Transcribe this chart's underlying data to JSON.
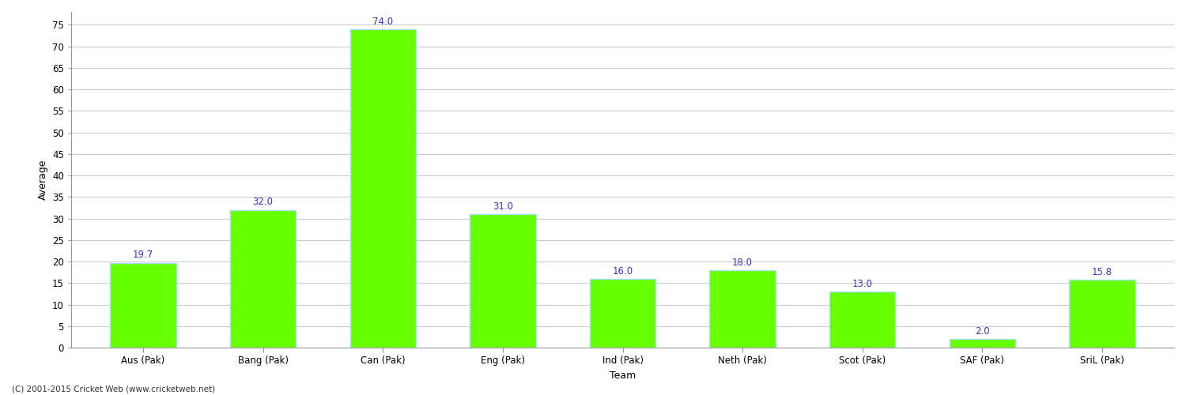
{
  "categories": [
    "Aus (Pak)",
    "Bang (Pak)",
    "Can (Pak)",
    "Eng (Pak)",
    "Ind (Pak)",
    "Neth (Pak)",
    "Scot (Pak)",
    "SAF (Pak)",
    "SriL (Pak)"
  ],
  "values": [
    19.7,
    32.0,
    74.0,
    31.0,
    16.0,
    18.0,
    13.0,
    2.0,
    15.8
  ],
  "bar_color": "#66ff00",
  "bar_edge_color": "#aaddff",
  "label_color": "#3333cc",
  "xlabel": "Team",
  "ylabel": "Average",
  "ylim": [
    0,
    78
  ],
  "yticks": [
    0,
    5,
    10,
    15,
    20,
    25,
    30,
    35,
    40,
    45,
    50,
    55,
    60,
    65,
    70,
    75
  ],
  "grid_color": "#cccccc",
  "background_color": "#ffffff",
  "label_fontsize": 8.5,
  "axis_label_fontsize": 9,
  "tick_fontsize": 8.5,
  "footer_text": "(C) 2001-2015 Cricket Web (www.cricketweb.net)"
}
